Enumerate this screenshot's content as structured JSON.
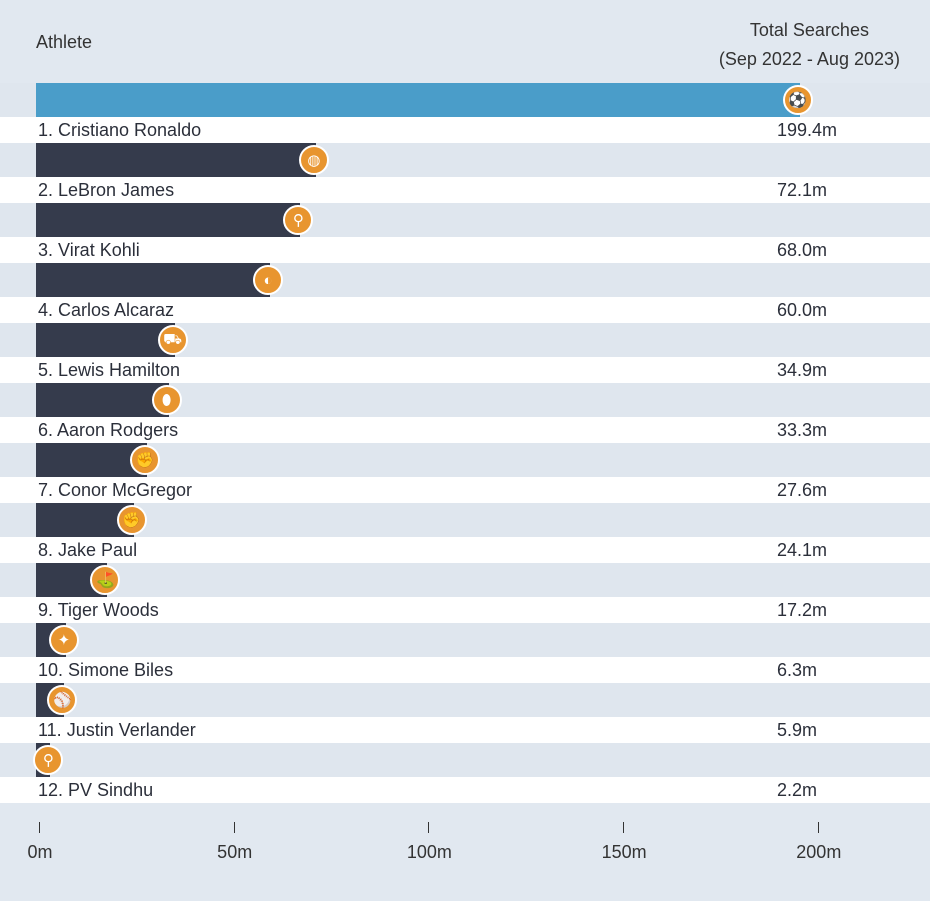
{
  "chart_data": {
    "type": "bar",
    "orientation": "horizontal",
    "column_headers": {
      "athlete": "Athlete",
      "total": "Total Searches",
      "period": "(Sep 2022 - Aug 2023)"
    },
    "categories": [
      "1. Cristiano Ronaldo",
      "2. LeBron James",
      "3. Virat Kohli",
      "4. Carlos Alcaraz",
      "5. Lewis Hamilton",
      "6. Aaron Rodgers",
      "7. Conor McGregor",
      "8. Jake Paul",
      "9. Tiger Woods",
      "10. Simone Biles",
      "11. Justin Verlander",
      "12. PV Sindhu"
    ],
    "values": [
      199.4,
      72.1,
      68.0,
      60.0,
      34.9,
      33.3,
      27.6,
      24.1,
      17.2,
      6.3,
      5.9,
      2.2
    ],
    "value_labels": [
      "199.4m",
      "72.1m",
      "68.0m",
      "60.0m",
      "34.9m",
      "33.3m",
      "27.6m",
      "24.1m",
      "17.2m",
      "6.3m",
      "5.9m",
      "2.2m"
    ],
    "icons": [
      "soccer-ball-icon",
      "basketball-icon",
      "cricket-icon",
      "tennis-ball-icon",
      "car-icon",
      "football-icon",
      "mma-icon",
      "boxing-glove-icon",
      "golf-icon",
      "gymnastics-icon",
      "baseball-icon",
      "badminton-icon"
    ],
    "xlim": [
      0,
      200
    ],
    "xticks": [
      "0m",
      "50m",
      "100m",
      "150m",
      "200m"
    ],
    "colors": {
      "top_bar": "#4a9dc9",
      "bar": "#353b4c",
      "icon": "#e8952f"
    }
  }
}
